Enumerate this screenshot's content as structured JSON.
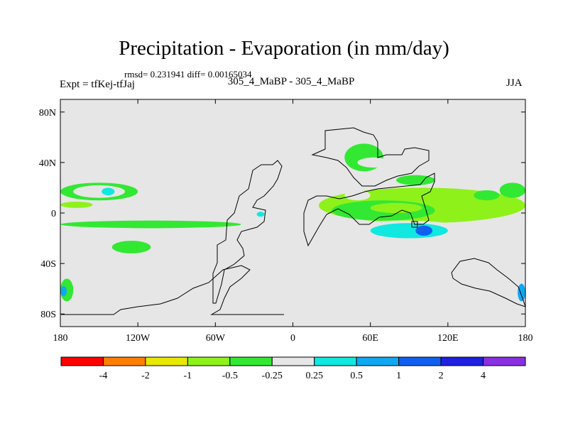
{
  "title": "Precipitation - Evaporation (in mm/day)",
  "stats": "rmsd= 0.231941 diff= 0.00165034",
  "subtitle": "305_4_MaBP - 305_4_MaBP",
  "left_label": "Expt = tfKej-tfJaj",
  "right_label": "JJA",
  "chart_data": {
    "type": "heatmap",
    "title": "Precipitation - Evaporation (in mm/day)",
    "xlabel": "",
    "ylabel": "",
    "xlim": [
      -180,
      180
    ],
    "ylim": [
      -90,
      90
    ],
    "x_ticks": [
      {
        "value": -180,
        "label": "180"
      },
      {
        "value": -120,
        "label": "120W"
      },
      {
        "value": -60,
        "label": "60W"
      },
      {
        "value": 0,
        "label": "0"
      },
      {
        "value": 60,
        "label": "60E"
      },
      {
        "value": 120,
        "label": "120E"
      },
      {
        "value": 180,
        "label": "180"
      }
    ],
    "y_ticks": [
      {
        "value": 80,
        "label": "80N"
      },
      {
        "value": 40,
        "label": "40N"
      },
      {
        "value": 0,
        "label": "0"
      },
      {
        "value": -40,
        "label": "40S"
      },
      {
        "value": -80,
        "label": "80S"
      }
    ],
    "colorbar": {
      "colors": [
        "#ff0000",
        "#ff8000",
        "#e8e800",
        "#8ef21a",
        "#32e832",
        "#e6e6e6",
        "#10e8e0",
        "#10a8f0",
        "#1060f0",
        "#2020e0",
        "#8a30e0"
      ],
      "labels": [
        "-4",
        "-2",
        "-1",
        "-0.5",
        "-0.25",
        "0.25",
        "0.5",
        "1",
        "2",
        "4"
      ]
    },
    "background_color": "#e6e6e6",
    "regions": [
      {
        "lon": [
          -180,
          -120
        ],
        "lat": [
          10,
          24
        ],
        "level": 4
      },
      {
        "lon": [
          -170,
          -130
        ],
        "lat": [
          12,
          22
        ],
        "level": 5
      },
      {
        "lon": [
          -148,
          -138
        ],
        "lat": [
          14,
          20
        ],
        "level": 6
      },
      {
        "lon": [
          -180,
          -155
        ],
        "lat": [
          4,
          9
        ],
        "level": 3
      },
      {
        "lon": [
          -180,
          -40
        ],
        "lat": [
          -12,
          -6
        ],
        "level": 4
      },
      {
        "lon": [
          -140,
          -110
        ],
        "lat": [
          -32,
          -22
        ],
        "level": 4
      },
      {
        "lon": [
          -180,
          -170
        ],
        "lat": [
          -70,
          -52
        ],
        "level": 4
      },
      {
        "lon": [
          -180,
          -175
        ],
        "lat": [
          -66,
          -58
        ],
        "level": 7
      },
      {
        "lon": [
          -38,
          -18
        ],
        "lat": [
          -6,
          4
        ],
        "level": 5
      },
      {
        "lon": [
          -28,
          -22
        ],
        "lat": [
          -3,
          1
        ],
        "level": 6
      },
      {
        "lon": [
          -20,
          20
        ],
        "lat": [
          65,
          72
        ],
        "level": 5
      },
      {
        "lon": [
          40,
          70
        ],
        "lat": [
          33,
          55
        ],
        "level": 4
      },
      {
        "lon": [
          50,
          75
        ],
        "lat": [
          36,
          44
        ],
        "level": 5
      },
      {
        "lon": [
          80,
          110
        ],
        "lat": [
          22,
          30
        ],
        "level": 4
      },
      {
        "lon": [
          20,
          180
        ],
        "lat": [
          -8,
          20
        ],
        "level": 3
      },
      {
        "lon": [
          30,
          110
        ],
        "lat": [
          -6,
          10
        ],
        "level": 4
      },
      {
        "lon": [
          60,
          100
        ],
        "lat": [
          0,
          8
        ],
        "level": 3
      },
      {
        "lon": [
          40,
          60
        ],
        "lat": [
          10,
          18
        ],
        "level": 5
      },
      {
        "lon": [
          30,
          140
        ],
        "lat": [
          -24,
          -6
        ],
        "level": 5
      },
      {
        "lon": [
          60,
          120
        ],
        "lat": [
          -20,
          -8
        ],
        "level": 6
      },
      {
        "lon": [
          95,
          108
        ],
        "lat": [
          -18,
          -10
        ],
        "level": 8
      },
      {
        "lon": [
          120,
          160
        ],
        "lat": [
          -42,
          -28
        ],
        "level": 5
      },
      {
        "lon": [
          140,
          160
        ],
        "lat": [
          10,
          18
        ],
        "level": 4
      },
      {
        "lon": [
          160,
          180
        ],
        "lat": [
          12,
          24
        ],
        "level": 4
      },
      {
        "lon": [
          170,
          180
        ],
        "lat": [
          -60,
          -48
        ],
        "level": 5
      },
      {
        "lon": [
          174,
          180
        ],
        "lat": [
          -70,
          -56
        ],
        "level": 7
      }
    ]
  }
}
